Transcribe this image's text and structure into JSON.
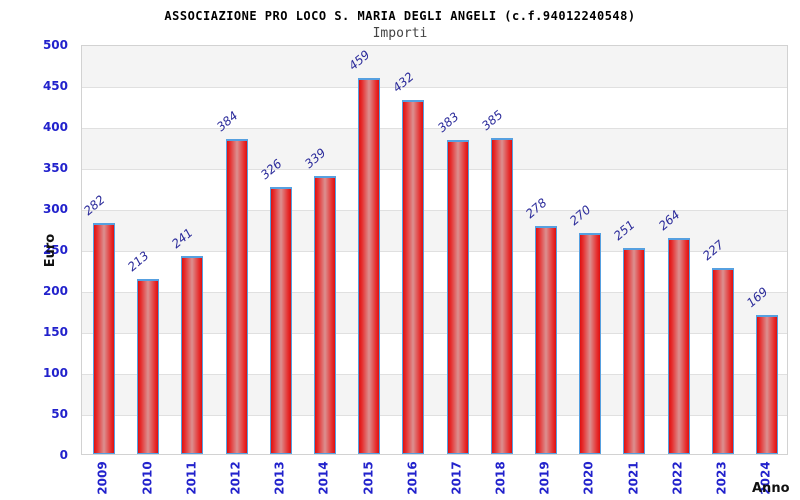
{
  "header": {
    "title": "ASSOCIAZIONE PRO LOCO S. MARIA DEGLI ANGELI (c.f.94012240548)",
    "subtitle": "Importi"
  },
  "chart_data": {
    "type": "bar",
    "title": "ASSOCIAZIONE PRO LOCO S. MARIA DEGLI ANGELI (c.f.94012240548)",
    "subtitle": "Importi",
    "xlabel": "Anno",
    "ylabel": "Euro",
    "categories": [
      "2009",
      "2010",
      "2011",
      "2012",
      "2013",
      "2014",
      "2015",
      "2016",
      "2017",
      "2018",
      "2019",
      "2020",
      "2021",
      "2022",
      "2023",
      "2024"
    ],
    "values": [
      282,
      213,
      241,
      384,
      326,
      339,
      459,
      432,
      383,
      385,
      278,
      270,
      251,
      264,
      227,
      169
    ],
    "ylim": [
      0,
      500
    ],
    "ytick_step": 50,
    "yticks": [
      0,
      50,
      100,
      150,
      200,
      250,
      300,
      350,
      400,
      450,
      500
    ],
    "grid": true,
    "legend_position": "none",
    "bands_alternating": true,
    "colors": {
      "bar_fill_edge": "#df1010",
      "bar_fill_center": "#db9090",
      "bar_border": "#56a0e0",
      "value_label": "#2a2a9a",
      "axis_tick_text": "#2222cc",
      "axis_title_text": "#111111",
      "title_text": "#000000",
      "subtitle_text": "#444444",
      "band_gray": "#f4f4f4",
      "gridline": "#e0e0e0",
      "plot_border": "#d2d2d2"
    }
  }
}
